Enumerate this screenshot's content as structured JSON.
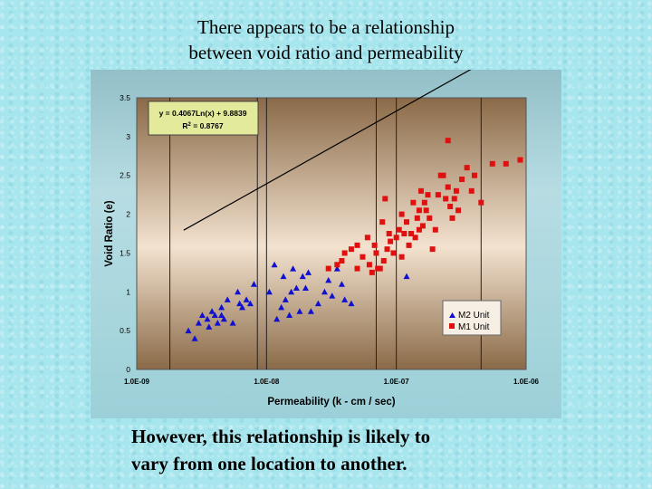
{
  "slide": {
    "title_line1": "There appears to be a relationship",
    "title_line2": "between void ratio and permeability",
    "caption_line1": "However,  this relationship is likely to",
    "caption_line2": "vary from one location to another."
  },
  "colors": {
    "background": "#a8e6ee",
    "m2": "#1010d0",
    "m1": "#e01010",
    "plot_top": "#8a6a48",
    "plot_mid": "#f3e2cf"
  },
  "chart_data": {
    "type": "scatter",
    "x_scale": "log",
    "xlabel": "Permeability (k - cm / sec)",
    "ylabel": "Void Ratio (e)",
    "xlim": [
      1e-09,
      1e-06
    ],
    "ylim": [
      0,
      3.5
    ],
    "x_ticks": [
      1e-09,
      1e-08,
      1e-07,
      1e-06
    ],
    "x_tick_labels": [
      "1.0E-09",
      "1.0E-08",
      "1.0E-07",
      "1.0E-06"
    ],
    "y_ticks": [
      0,
      0.5,
      1,
      1.5,
      2,
      2.5,
      3,
      3.5
    ],
    "y_tick_labels": [
      "0",
      "0.5",
      "1",
      "1.5",
      "2",
      "2.5",
      "3",
      "3.5"
    ],
    "vertical_lines": [
      1.8e-09,
      8.5e-09,
      1e-08,
      7e-08,
      1e-07,
      4.5e-07,
      1.2e-06
    ],
    "trendline": {
      "a": 0.4067,
      "b": 9.8839,
      "equation": "y = 0.4067Ln(x) + 9.8839",
      "r2_label": "R",
      "r2_value": " = 0.8767",
      "x_range": [
        2.3e-09,
        1.25e-06
      ]
    },
    "legend_placement": "bottom-right",
    "series": [
      {
        "name": "M2 Unit",
        "marker": "triangle",
        "color": "#1010d0",
        "points": [
          [
            2.5e-09,
            0.5
          ],
          [
            2.8e-09,
            0.4
          ],
          [
            3e-09,
            0.6
          ],
          [
            3.2e-09,
            0.7
          ],
          [
            3.5e-09,
            0.65
          ],
          [
            3.6e-09,
            0.55
          ],
          [
            3.8e-09,
            0.75
          ],
          [
            4e-09,
            0.7
          ],
          [
            4.2e-09,
            0.6
          ],
          [
            4.5e-09,
            0.8
          ],
          [
            4.7e-09,
            0.65
          ],
          [
            4.5e-09,
            0.7
          ],
          [
            5e-09,
            0.9
          ],
          [
            5.5e-09,
            0.6
          ],
          [
            6e-09,
            1
          ],
          [
            6.2e-09,
            0.85
          ],
          [
            6.5e-09,
            0.8
          ],
          [
            7e-09,
            0.9
          ],
          [
            7.5e-09,
            0.85
          ],
          [
            8e-09,
            1.1
          ],
          [
            1.05e-08,
            1
          ],
          [
            1.15e-08,
            1.35
          ],
          [
            1.2e-08,
            0.65
          ],
          [
            1.3e-08,
            0.8
          ],
          [
            1.35e-08,
            1.2
          ],
          [
            1.4e-08,
            0.9
          ],
          [
            1.5e-08,
            0.7
          ],
          [
            1.55e-08,
            1
          ],
          [
            1.6e-08,
            1.3
          ],
          [
            1.7e-08,
            1.05
          ],
          [
            1.8e-08,
            0.75
          ],
          [
            1.9e-08,
            1.2
          ],
          [
            2e-08,
            1.05
          ],
          [
            2.1e-08,
            1.25
          ],
          [
            2.2e-08,
            0.75
          ],
          [
            2.5e-08,
            0.85
          ],
          [
            2.8e-08,
            1
          ],
          [
            3e-08,
            1.15
          ],
          [
            3.2e-08,
            0.95
          ],
          [
            3.5e-08,
            1.3
          ],
          [
            3.8e-08,
            1.1
          ],
          [
            4e-08,
            0.9
          ],
          [
            4.5e-08,
            0.85
          ],
          [
            1.2e-07,
            1.2
          ]
        ]
      },
      {
        "name": "M1 Unit",
        "marker": "square",
        "color": "#e01010",
        "points": [
          [
            3e-08,
            1.3
          ],
          [
            3.5e-08,
            1.35
          ],
          [
            3.8e-08,
            1.4
          ],
          [
            4e-08,
            1.5
          ],
          [
            4.5e-08,
            1.55
          ],
          [
            5e-08,
            1.3
          ],
          [
            5e-08,
            1.6
          ],
          [
            5.5e-08,
            1.45
          ],
          [
            6e-08,
            1.7
          ],
          [
            6.2e-08,
            1.35
          ],
          [
            6.5e-08,
            1.25
          ],
          [
            6.8e-08,
            1.6
          ],
          [
            7e-08,
            1.5
          ],
          [
            7.2e-08,
            1.3
          ],
          [
            7.5e-08,
            1.3
          ],
          [
            7.8e-08,
            1.9
          ],
          [
            8e-08,
            1.4
          ],
          [
            8.2e-08,
            2.2
          ],
          [
            8.5e-08,
            1.55
          ],
          [
            8.8e-08,
            1.75
          ],
          [
            9e-08,
            1.65
          ],
          [
            9.5e-08,
            1.5
          ],
          [
            1e-07,
            1.7
          ],
          [
            1.05e-07,
            1.8
          ],
          [
            1.1e-07,
            2
          ],
          [
            1.1e-07,
            1.45
          ],
          [
            1.15e-07,
            1.75
          ],
          [
            1.2e-07,
            1.9
          ],
          [
            1.25e-07,
            1.6
          ],
          [
            1.3e-07,
            1.75
          ],
          [
            1.35e-07,
            2.15
          ],
          [
            1.4e-07,
            1.7
          ],
          [
            1.45e-07,
            1.95
          ],
          [
            1.5e-07,
            1.8
          ],
          [
            1.5e-07,
            2.05
          ],
          [
            1.55e-07,
            2.3
          ],
          [
            1.6e-07,
            1.85
          ],
          [
            1.65e-07,
            2.15
          ],
          [
            1.7e-07,
            2.05
          ],
          [
            1.75e-07,
            2.25
          ],
          [
            1.8e-07,
            1.95
          ],
          [
            1.9e-07,
            1.55
          ],
          [
            2e-07,
            1.8
          ],
          [
            2.1e-07,
            2.25
          ],
          [
            2.2e-07,
            2.5
          ],
          [
            2.3e-07,
            2.5
          ],
          [
            2.4e-07,
            2.2
          ],
          [
            2.5e-07,
            2.35
          ],
          [
            2.6e-07,
            2.1
          ],
          [
            2.7e-07,
            1.95
          ],
          [
            2.8e-07,
            2.2
          ],
          [
            2.9e-07,
            2.3
          ],
          [
            3e-07,
            2.05
          ],
          [
            3.2e-07,
            2.45
          ],
          [
            3.5e-07,
            2.6
          ],
          [
            2.5e-07,
            2.95
          ],
          [
            3.8e-07,
            2.3
          ],
          [
            4e-07,
            2.5
          ],
          [
            4.5e-07,
            2.15
          ],
          [
            5.5e-07,
            2.65
          ],
          [
            7e-07,
            2.65
          ],
          [
            9e-07,
            2.7
          ]
        ]
      }
    ]
  }
}
